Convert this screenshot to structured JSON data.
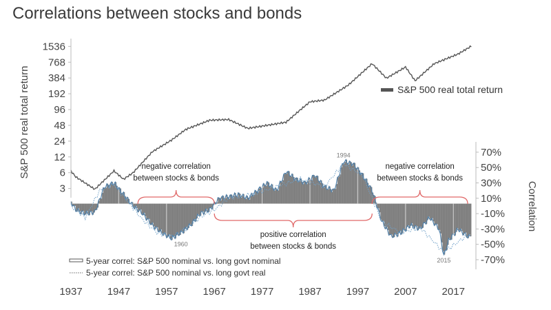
{
  "chart_data": {
    "type": "line",
    "title": "Correlations between stocks and bonds",
    "x_ticks": [
      1937,
      1947,
      1957,
      1967,
      1977,
      1987,
      1997,
      2007,
      2017
    ],
    "xlim": [
      1937,
      2021
    ],
    "left_axis": {
      "label": "S&P 500 real total return",
      "scale": "log2",
      "ticks": [
        3,
        6,
        12,
        24,
        48,
        96,
        192,
        384,
        768,
        1536
      ],
      "ylim": [
        2.4,
        1700
      ]
    },
    "right_axis": {
      "label": "Correlation",
      "ticks": [
        "70%",
        "50%",
        "30%",
        "10%",
        "-10%",
        "-30%",
        "-50%",
        "-70%"
      ],
      "tick_values": [
        70,
        50,
        30,
        10,
        -10,
        -30,
        -50,
        -70
      ],
      "ylim": [
        -79,
        78
      ],
      "zero_line": 3
    },
    "series": [
      {
        "name": "S&P 500 real total return",
        "axis": "left",
        "style": "line",
        "x": [
          1937,
          1938,
          1942,
          1946,
          1948,
          1950,
          1954,
          1958,
          1961,
          1966,
          1970,
          1974,
          1978,
          1982,
          1985,
          1987,
          1990,
          1995,
          2000,
          2003,
          2007,
          2009,
          2013,
          2018,
          2021
        ],
        "y": [
          6.5,
          5,
          2.9,
          6.5,
          4.5,
          6,
          15,
          25,
          40,
          60,
          62,
          42,
          48,
          55,
          95,
          135,
          145,
          280,
          720,
          380,
          620,
          340,
          720,
          1100,
          1600
        ]
      },
      {
        "name": "5-year correl: S&P 500 nominal vs. long govt nominal",
        "axis": "right",
        "style": "area",
        "x": [
          1937,
          1938,
          1940,
          1942,
          1944,
          1946,
          1948,
          1950,
          1952,
          1954,
          1956,
          1958,
          1960,
          1962,
          1964,
          1966,
          1968,
          1970,
          1972,
          1974,
          1976,
          1978,
          1980,
          1982,
          1984,
          1986,
          1988,
          1990,
          1992,
          1994,
          1996,
          1998,
          2000,
          2002,
          2004,
          2006,
          2008,
          2010,
          2012,
          2014,
          2015,
          2016,
          2018,
          2020
        ],
        "y": [
          5,
          -5,
          -10,
          -8,
          25,
          30,
          15,
          0,
          -10,
          -25,
          -35,
          -42,
          -35,
          -25,
          -10,
          -5,
          10,
          12,
          15,
          10,
          20,
          30,
          20,
          45,
          35,
          30,
          40,
          25,
          20,
          58,
          55,
          40,
          20,
          -20,
          -40,
          -35,
          -25,
          -30,
          -15,
          -30,
          -65,
          -45,
          -30,
          -40
        ]
      },
      {
        "name": "5-year correl: S&P 500 nominal vs. long govt real",
        "axis": "right",
        "style": "dotted",
        "x": [
          1937,
          1940,
          1943,
          1946,
          1949,
          1952,
          1955,
          1958,
          1961,
          1964,
          1967,
          1970,
          1975,
          1980,
          1985,
          1990,
          1994,
          1998,
          2002,
          2006,
          2010,
          2015,
          2020
        ],
        "y": [
          0,
          -15,
          20,
          28,
          5,
          -18,
          -35,
          -40,
          -30,
          -15,
          -5,
          10,
          15,
          25,
          35,
          25,
          55,
          40,
          -20,
          -35,
          -28,
          -60,
          -38
        ]
      }
    ],
    "annotations": [
      {
        "id": "neg1",
        "text": [
          "negative correlation",
          "between stocks & bonds"
        ],
        "span": [
          1951,
          1967
        ],
        "side": "above"
      },
      {
        "id": "pos",
        "text": [
          "positive correlation",
          "between stocks & bonds"
        ],
        "span": [
          1967,
          2000
        ],
        "side": "below"
      },
      {
        "id": "neg2",
        "text": [
          "negative correlation",
          "between stocks & bonds"
        ],
        "span": [
          2000,
          2020
        ],
        "side": "above"
      }
    ],
    "peak_labels": [
      {
        "text": "1994",
        "x": 1994,
        "y": 66
      },
      {
        "text": "1960",
        "x": 1960,
        "y": -50
      },
      {
        "text": "2015",
        "x": 2015,
        "y": -71
      }
    ],
    "legend": [
      {
        "text": "S&P 500 real total return",
        "swatch": "solid-bar"
      },
      {
        "text": "5-year correl: S&P 500 nominal vs. long govt nominal",
        "swatch": "outline-bar"
      },
      {
        "text": "5-year correl: S&P 500 nominal vs. long govt real",
        "swatch": "dotted"
      }
    ],
    "colors": {
      "title": "#3a3a3a",
      "area_fill": "#808080",
      "area_edge": "#4f7fa8",
      "dotted": "#6fa0c8",
      "price_line": "#555555",
      "bracket": "#e06868",
      "vertical_lines": "#d8d8d8"
    }
  }
}
